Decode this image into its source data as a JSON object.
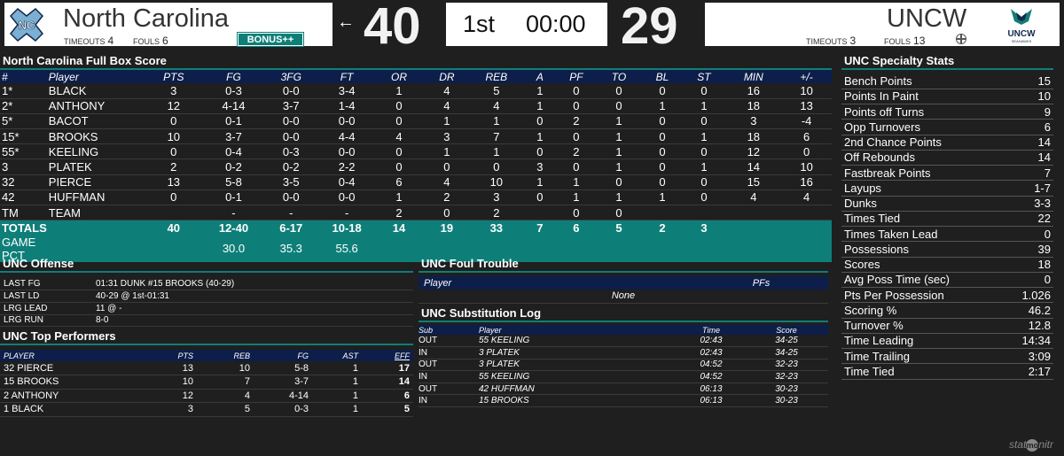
{
  "scoreboard": {
    "home": {
      "name": "North Carolina",
      "timeouts_label": "TIMEOUTS",
      "timeouts": "4",
      "fouls_label": "FOULS",
      "fouls": "6",
      "bonus": "BONUS++",
      "score": "40",
      "logo": "unc-interlocking-nc-logo"
    },
    "away": {
      "name": "UNCW",
      "timeouts_label": "TIMEOUTS",
      "timeouts": "3",
      "fouls_label": "FOULS",
      "fouls": "13",
      "score": "29",
      "logo": "uncw-seahawks-logo",
      "logo_text": "UNCW",
      "logo_subtext": "SEAHAWKS"
    },
    "possession_arrow": "←",
    "period": "1st",
    "clock": "00:00"
  },
  "box_score": {
    "title": "North Carolina Full Box Score",
    "columns": [
      "#",
      "Player",
      "PTS",
      "FG",
      "3FG",
      "FT",
      "OR",
      "DR",
      "REB",
      "A",
      "PF",
      "TO",
      "BL",
      "ST",
      "MIN",
      "+/-"
    ],
    "rows": [
      [
        "1*",
        "BLACK",
        "3",
        "0-3",
        "0-0",
        "3-4",
        "1",
        "4",
        "5",
        "1",
        "0",
        "0",
        "0",
        "0",
        "16",
        "10"
      ],
      [
        "2*",
        "ANTHONY",
        "12",
        "4-14",
        "3-7",
        "1-4",
        "0",
        "4",
        "4",
        "1",
        "0",
        "0",
        "1",
        "1",
        "18",
        "13"
      ],
      [
        "5*",
        "BACOT",
        "0",
        "0-1",
        "0-0",
        "0-0",
        "0",
        "1",
        "1",
        "0",
        "2",
        "1",
        "0",
        "0",
        "3",
        "-4"
      ],
      [
        "15*",
        "BROOKS",
        "10",
        "3-7",
        "0-0",
        "4-4",
        "4",
        "3",
        "7",
        "1",
        "0",
        "1",
        "0",
        "1",
        "18",
        "6"
      ],
      [
        "55*",
        "KEELING",
        "0",
        "0-4",
        "0-3",
        "0-0",
        "0",
        "1",
        "1",
        "0",
        "2",
        "1",
        "0",
        "0",
        "12",
        "0"
      ],
      [
        "3",
        "PLATEK",
        "2",
        "0-2",
        "0-2",
        "2-2",
        "0",
        "0",
        "0",
        "3",
        "0",
        "1",
        "0",
        "1",
        "14",
        "10"
      ],
      [
        "32",
        "PIERCE",
        "13",
        "5-8",
        "3-5",
        "0-4",
        "6",
        "4",
        "10",
        "1",
        "1",
        "0",
        "0",
        "0",
        "15",
        "16"
      ],
      [
        "42",
        "HUFFMAN",
        "0",
        "0-1",
        "0-0",
        "0-0",
        "1",
        "2",
        "3",
        "0",
        "1",
        "1",
        "1",
        "0",
        "4",
        "4"
      ],
      [
        "TM",
        "TEAM",
        "",
        "-",
        "-",
        "-",
        "2",
        "0",
        "2",
        "",
        "0",
        "0",
        "",
        "",
        "",
        ""
      ]
    ],
    "totals": [
      "TOTALS",
      "",
      "40",
      "12-40",
      "6-17",
      "10-18",
      "14",
      "19",
      "33",
      "7",
      "6",
      "5",
      "2",
      "3",
      "",
      ""
    ],
    "pct": [
      "GAME PCT",
      "",
      "",
      "30.0",
      "35.3",
      "55.6",
      "",
      "",
      "",
      "",
      "",
      "",
      "",
      "",
      "",
      ""
    ]
  },
  "offense": {
    "title": "UNC Offense",
    "rows": [
      {
        "k": "LAST FG",
        "v": "01:31 DUNK #15 BROOKS (40-29)"
      },
      {
        "k": "LAST LD",
        "v": "40-29 @ 1st-01:31"
      },
      {
        "k": "LRG LEAD",
        "v": "11 @ -"
      },
      {
        "k": "LRG RUN",
        "v": "8-0"
      }
    ]
  },
  "top_performers": {
    "title": "UNC Top Performers",
    "columns": [
      "PLAYER",
      "PTS",
      "REB",
      "FG",
      "AST",
      "EFF"
    ],
    "rows": [
      [
        "32 PIERCE",
        "13",
        "10",
        "5-8",
        "1",
        "17"
      ],
      [
        "15 BROOKS",
        "10",
        "7",
        "3-7",
        "1",
        "14"
      ],
      [
        "2 ANTHONY",
        "12",
        "4",
        "4-14",
        "1",
        "6"
      ],
      [
        "1 BLACK",
        "3",
        "5",
        "0-3",
        "1",
        "5"
      ]
    ]
  },
  "foul_trouble": {
    "title": "UNC Foul Trouble",
    "columns": [
      "Player",
      "PFs"
    ],
    "empty": "None"
  },
  "subs": {
    "title": "UNC Substitution Log",
    "columns": [
      "Sub",
      "Player",
      "Time",
      "Score"
    ],
    "rows": [
      [
        "OUT",
        "55 KEELING",
        "02:43",
        "34-25"
      ],
      [
        "IN",
        "3 PLATEK",
        "02:43",
        "34-25"
      ],
      [
        "OUT",
        "3 PLATEK",
        "04:52",
        "32-23"
      ],
      [
        "IN",
        "55 KEELING",
        "04:52",
        "32-23"
      ],
      [
        "OUT",
        "42 HUFFMAN",
        "06:13",
        "30-23"
      ],
      [
        "IN",
        "15 BROOKS",
        "06:13",
        "30-23"
      ]
    ]
  },
  "specialty": {
    "title": "UNC Specialty Stats",
    "rows": [
      [
        "Bench Points",
        "15"
      ],
      [
        "Points In Paint",
        "10"
      ],
      [
        "Points off Turns",
        "9"
      ],
      [
        "Opp Turnovers",
        "6"
      ],
      [
        "2nd Chance Points",
        "14"
      ],
      [
        "Off Rebounds",
        "14"
      ],
      [
        "Fastbreak Points",
        "7"
      ],
      [
        "Layups",
        "1-7"
      ],
      [
        "Dunks",
        "3-3"
      ],
      [
        "Times Tied",
        "22"
      ],
      [
        "Times Taken Lead",
        "0"
      ],
      [
        "Possessions",
        "39"
      ],
      [
        "Scores",
        "18"
      ],
      [
        "Avg Poss Time (sec)",
        "0"
      ],
      [
        "Pts Per Possession",
        "1.026"
      ],
      [
        "Scoring %",
        "46.2"
      ],
      [
        "Turnover %",
        "12.8"
      ],
      [
        "Time Leading",
        "14:34"
      ],
      [
        "Time Trailing",
        "3:09"
      ],
      [
        "Time Tied",
        "2:17"
      ]
    ]
  },
  "footer": {
    "brand": "statmonitr",
    "brand_a": "stat",
    "brand_b": "mo",
    "brand_c": "nitr"
  },
  "colors": {
    "teal": "#0e7f78",
    "navy": "#0d1e4a",
    "unc_blue": "#7bafd4",
    "background": "#1f1f1f"
  }
}
